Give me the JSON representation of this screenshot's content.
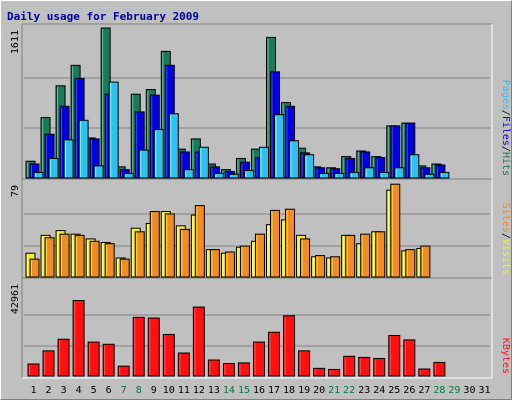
{
  "title": "Daily usage for February 2009",
  "colors": {
    "background": "#c0c0c0",
    "grid": "#808080",
    "hits": "#1a7a5a",
    "files": "#0000e0",
    "pages": "#30c0f0",
    "visits": "#f0f030",
    "sites": "#f08c20",
    "kbytes": "#ff1010",
    "weekend_label": "#00784a",
    "weekday_label": "#000000"
  },
  "chart_data": [
    {
      "type": "bar",
      "name": "hits-files-pages",
      "ymax_label": "1611",
      "legend": [
        "Pages",
        "Files",
        "Hits"
      ],
      "legend_colors": [
        "#30c0f0",
        "#0000e0",
        "#1a7a5a"
      ],
      "categories": [
        "1",
        "2",
        "3",
        "4",
        "5",
        "6",
        "7",
        "8",
        "9",
        "10",
        "11",
        "12",
        "13",
        "14",
        "15",
        "16",
        "17",
        "18",
        "19",
        "20",
        "21",
        "22",
        "23",
        "24",
        "25",
        "26",
        "27",
        "28",
        "29",
        "30",
        "31"
      ],
      "ylim": [
        0,
        1611
      ],
      "series": [
        {
          "name": "Hits",
          "values": [
            180,
            650,
            990,
            1210,
            430,
            1611,
            120,
            900,
            950,
            1360,
            310,
            420,
            150,
            90,
            210,
            310,
            1510,
            810,
            320,
            120,
            110,
            230,
            290,
            230,
            560,
            590,
            130,
            150,
            0,
            0,
            0
          ]
        },
        {
          "name": "Files",
          "values": [
            150,
            470,
            770,
            1070,
            420,
            900,
            90,
            710,
            890,
            1210,
            280,
            280,
            120,
            70,
            170,
            220,
            1140,
            770,
            270,
            110,
            100,
            210,
            280,
            220,
            560,
            590,
            110,
            140,
            0,
            0,
            0
          ]
        },
        {
          "name": "Pages",
          "values": [
            60,
            210,
            410,
            620,
            130,
            1030,
            50,
            300,
            520,
            690,
            90,
            330,
            50,
            40,
            80,
            330,
            680,
            400,
            250,
            50,
            50,
            60,
            110,
            60,
            110,
            250,
            40,
            60,
            0,
            0,
            0
          ]
        }
      ]
    },
    {
      "type": "bar",
      "name": "visits-sites",
      "ymax_label": "79",
      "legend": [
        "Sites",
        "Visits"
      ],
      "legend_colors": [
        "#f08c20",
        "#f0f030"
      ],
      "categories": [
        "1",
        "2",
        "3",
        "4",
        "5",
        "6",
        "7",
        "8",
        "9",
        "10",
        "11",
        "12",
        "13",
        "14",
        "15",
        "16",
        "17",
        "18",
        "19",
        "20",
        "21",
        "22",
        "23",
        "24",
        "25",
        "26",
        "27",
        "28",
        "29",
        "30",
        "31"
      ],
      "ylim": [
        0,
        79
      ],
      "series": [
        {
          "name": "Visits",
          "values": [
            20,
            35,
            39,
            36,
            32,
            29,
            16,
            41,
            45,
            55,
            43,
            52,
            23,
            20,
            25,
            30,
            44,
            48,
            35,
            17,
            16,
            35,
            28,
            38,
            73,
            22,
            24,
            0,
            0,
            0,
            0
          ]
        },
        {
          "name": "Sites",
          "values": [
            15,
            33,
            36,
            35,
            30,
            28,
            15,
            38,
            55,
            53,
            40,
            60,
            23,
            21,
            26,
            36,
            56,
            57,
            32,
            18,
            17,
            35,
            36,
            38,
            78,
            23,
            26,
            0,
            0,
            0,
            0
          ]
        }
      ]
    },
    {
      "type": "bar",
      "name": "kbytes",
      "ymax_label": "42961",
      "legend": [
        "KBytes"
      ],
      "legend_colors": [
        "#ff1010"
      ],
      "categories": [
        "1",
        "2",
        "3",
        "4",
        "5",
        "6",
        "7",
        "8",
        "9",
        "10",
        "11",
        "12",
        "13",
        "14",
        "15",
        "16",
        "17",
        "18",
        "19",
        "20",
        "21",
        "22",
        "23",
        "24",
        "25",
        "26",
        "27",
        "28",
        "29",
        "30",
        "31"
      ],
      "ylim": [
        0,
        42961
      ],
      "series": [
        {
          "name": "KBytes",
          "values": [
            5500,
            11500,
            16800,
            34500,
            15500,
            14500,
            4500,
            26800,
            26500,
            19000,
            10500,
            31500,
            7300,
            5700,
            6000,
            15500,
            20000,
            27500,
            11500,
            3500,
            3000,
            9000,
            8500,
            8000,
            18500,
            16500,
            3200,
            6200,
            0,
            0,
            0
          ]
        }
      ]
    }
  ],
  "days": [
    {
      "label": "1",
      "weekend": false
    },
    {
      "label": "2",
      "weekend": false
    },
    {
      "label": "3",
      "weekend": false
    },
    {
      "label": "4",
      "weekend": false
    },
    {
      "label": "5",
      "weekend": false
    },
    {
      "label": "6",
      "weekend": false
    },
    {
      "label": "7",
      "weekend": true
    },
    {
      "label": "8",
      "weekend": true
    },
    {
      "label": "9",
      "weekend": false
    },
    {
      "label": "10",
      "weekend": false
    },
    {
      "label": "11",
      "weekend": false
    },
    {
      "label": "12",
      "weekend": false
    },
    {
      "label": "13",
      "weekend": false
    },
    {
      "label": "14",
      "weekend": true
    },
    {
      "label": "15",
      "weekend": true
    },
    {
      "label": "16",
      "weekend": false
    },
    {
      "label": "17",
      "weekend": false
    },
    {
      "label": "18",
      "weekend": false
    },
    {
      "label": "19",
      "weekend": false
    },
    {
      "label": "20",
      "weekend": false
    },
    {
      "label": "21",
      "weekend": true
    },
    {
      "label": "22",
      "weekend": true
    },
    {
      "label": "23",
      "weekend": false
    },
    {
      "label": "24",
      "weekend": false
    },
    {
      "label": "25",
      "weekend": false
    },
    {
      "label": "26",
      "weekend": false
    },
    {
      "label": "27",
      "weekend": false
    },
    {
      "label": "28",
      "weekend": true
    },
    {
      "label": "29",
      "weekend": true
    },
    {
      "label": "30",
      "weekend": false
    },
    {
      "label": "31",
      "weekend": false
    }
  ]
}
